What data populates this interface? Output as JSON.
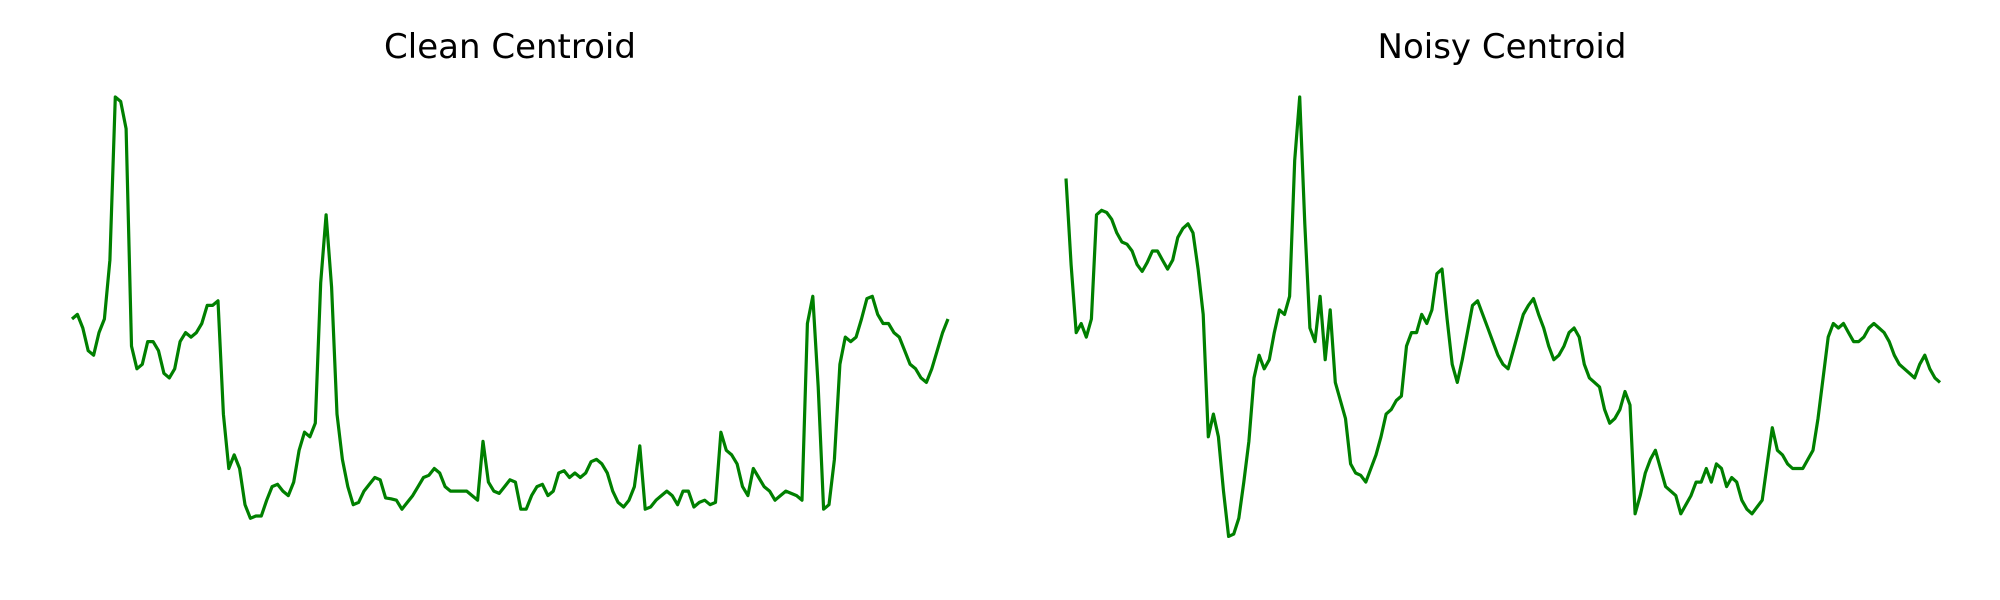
{
  "figure": {
    "line_color": "#008000"
  },
  "chart_data": [
    {
      "type": "line",
      "title": "Clean Centroid",
      "axes_visible": false,
      "grid": false,
      "ylim": [
        0,
        1
      ],
      "series": [
        {
          "color": "#008000",
          "values": [
            0.51,
            0.52,
            0.49,
            0.44,
            0.43,
            0.48,
            0.51,
            0.64,
            1.0,
            0.99,
            0.93,
            0.45,
            0.4,
            0.41,
            0.46,
            0.46,
            0.44,
            0.39,
            0.38,
            0.4,
            0.46,
            0.48,
            0.47,
            0.48,
            0.5,
            0.54,
            0.54,
            0.55,
            0.3,
            0.18,
            0.21,
            0.18,
            0.1,
            0.07,
            0.075,
            0.075,
            0.11,
            0.14,
            0.145,
            0.13,
            0.12,
            0.15,
            0.22,
            0.26,
            0.25,
            0.28,
            0.59,
            0.74,
            0.58,
            0.3,
            0.2,
            0.14,
            0.1,
            0.105,
            0.13,
            0.145,
            0.16,
            0.155,
            0.115,
            0.113,
            0.11,
            0.09,
            0.105,
            0.12,
            0.14,
            0.16,
            0.165,
            0.18,
            0.17,
            0.14,
            0.13,
            0.13,
            0.13,
            0.13,
            0.12,
            0.11,
            0.24,
            0.15,
            0.13,
            0.125,
            0.14,
            0.155,
            0.15,
            0.09,
            0.09,
            0.12,
            0.14,
            0.145,
            0.12,
            0.13,
            0.17,
            0.175,
            0.16,
            0.17,
            0.16,
            0.17,
            0.195,
            0.2,
            0.19,
            0.17,
            0.13,
            0.105,
            0.095,
            0.11,
            0.14,
            0.23,
            0.09,
            0.095,
            0.11,
            0.12,
            0.13,
            0.12,
            0.1,
            0.13,
            0.13,
            0.095,
            0.105,
            0.11,
            0.1,
            0.105,
            0.26,
            0.22,
            0.21,
            0.19,
            0.14,
            0.12,
            0.18,
            0.16,
            0.14,
            0.13,
            0.11,
            0.12,
            0.13,
            0.125,
            0.12,
            0.11,
            0.5,
            0.56,
            0.36,
            0.09,
            0.1,
            0.2,
            0.41,
            0.47,
            0.46,
            0.47,
            0.51,
            0.555,
            0.56,
            0.52,
            0.5,
            0.5,
            0.48,
            0.47,
            0.44,
            0.41,
            0.4,
            0.38,
            0.37,
            0.4,
            0.44,
            0.48,
            0.51
          ]
        }
      ]
    },
    {
      "type": "line",
      "title": "Noisy Centroid",
      "axes_visible": false,
      "grid": false,
      "ylim": [
        0,
        1
      ],
      "series": [
        {
          "color": "#008000",
          "values": [
            0.82,
            0.63,
            0.48,
            0.5,
            0.47,
            0.51,
            0.74,
            0.75,
            0.745,
            0.73,
            0.7,
            0.68,
            0.675,
            0.66,
            0.63,
            0.615,
            0.635,
            0.66,
            0.66,
            0.64,
            0.62,
            0.64,
            0.69,
            0.71,
            0.72,
            0.7,
            0.62,
            0.52,
            0.25,
            0.3,
            0.25,
            0.13,
            0.03,
            0.035,
            0.07,
            0.15,
            0.24,
            0.38,
            0.43,
            0.4,
            0.42,
            0.48,
            0.53,
            0.52,
            0.56,
            0.86,
            1.0,
            0.72,
            0.49,
            0.46,
            0.56,
            0.42,
            0.53,
            0.37,
            0.33,
            0.29,
            0.19,
            0.17,
            0.165,
            0.15,
            0.18,
            0.21,
            0.25,
            0.3,
            0.31,
            0.33,
            0.34,
            0.45,
            0.48,
            0.48,
            0.52,
            0.5,
            0.53,
            0.61,
            0.62,
            0.51,
            0.41,
            0.37,
            0.42,
            0.48,
            0.54,
            0.55,
            0.52,
            0.49,
            0.46,
            0.43,
            0.41,
            0.4,
            0.44,
            0.48,
            0.52,
            0.54,
            0.555,
            0.52,
            0.49,
            0.45,
            0.42,
            0.43,
            0.45,
            0.48,
            0.49,
            0.47,
            0.41,
            0.38,
            0.37,
            0.36,
            0.31,
            0.28,
            0.29,
            0.31,
            0.35,
            0.32,
            0.08,
            0.12,
            0.17,
            0.2,
            0.22,
            0.18,
            0.14,
            0.13,
            0.12,
            0.08,
            0.1,
            0.12,
            0.15,
            0.15,
            0.18,
            0.15,
            0.19,
            0.18,
            0.14,
            0.16,
            0.15,
            0.11,
            0.09,
            0.08,
            0.095,
            0.11,
            0.19,
            0.27,
            0.22,
            0.21,
            0.19,
            0.18,
            0.18,
            0.18,
            0.2,
            0.22,
            0.29,
            0.38,
            0.47,
            0.5,
            0.49,
            0.5,
            0.48,
            0.46,
            0.46,
            0.47,
            0.49,
            0.5,
            0.49,
            0.48,
            0.46,
            0.43,
            0.41,
            0.4,
            0.39,
            0.38,
            0.41,
            0.43,
            0.4,
            0.38,
            0.37
          ]
        }
      ]
    }
  ]
}
